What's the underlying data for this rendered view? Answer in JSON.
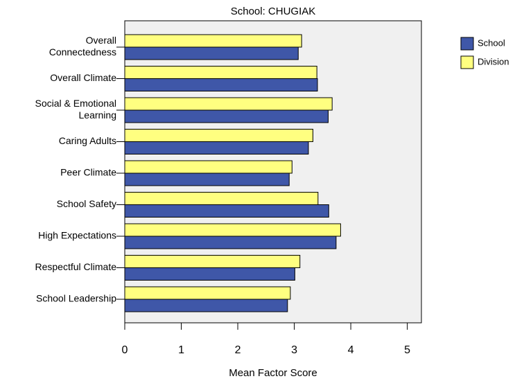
{
  "chart_data": {
    "type": "bar",
    "orientation": "horizontal",
    "title": "School: CHUGIAK",
    "x_label": "Mean Factor Score",
    "categories": [
      [
        "Overall",
        "Connectedness"
      ],
      [
        "Overall Climate"
      ],
      [
        "Social & Emotional",
        "Learning"
      ],
      [
        "Caring Adults"
      ],
      [
        "Peer Climate"
      ],
      [
        "School Safety"
      ],
      [
        "High Expectations"
      ],
      [
        "Respectful Climate"
      ],
      [
        "School Leadership"
      ]
    ],
    "series": [
      {
        "name": "School",
        "color": "#3f57a8",
        "values": [
          3.07,
          3.41,
          3.6,
          3.25,
          2.91,
          3.61,
          3.74,
          3.01,
          2.88
        ]
      },
      {
        "name": "Division",
        "color": "#ffff80",
        "values": [
          3.13,
          3.4,
          3.67,
          3.33,
          2.96,
          3.42,
          3.82,
          3.1,
          2.93
        ]
      }
    ],
    "xlim": [
      0,
      5.25
    ],
    "xticks": [
      0,
      1,
      2,
      3,
      4,
      5
    ],
    "legend": "right"
  }
}
